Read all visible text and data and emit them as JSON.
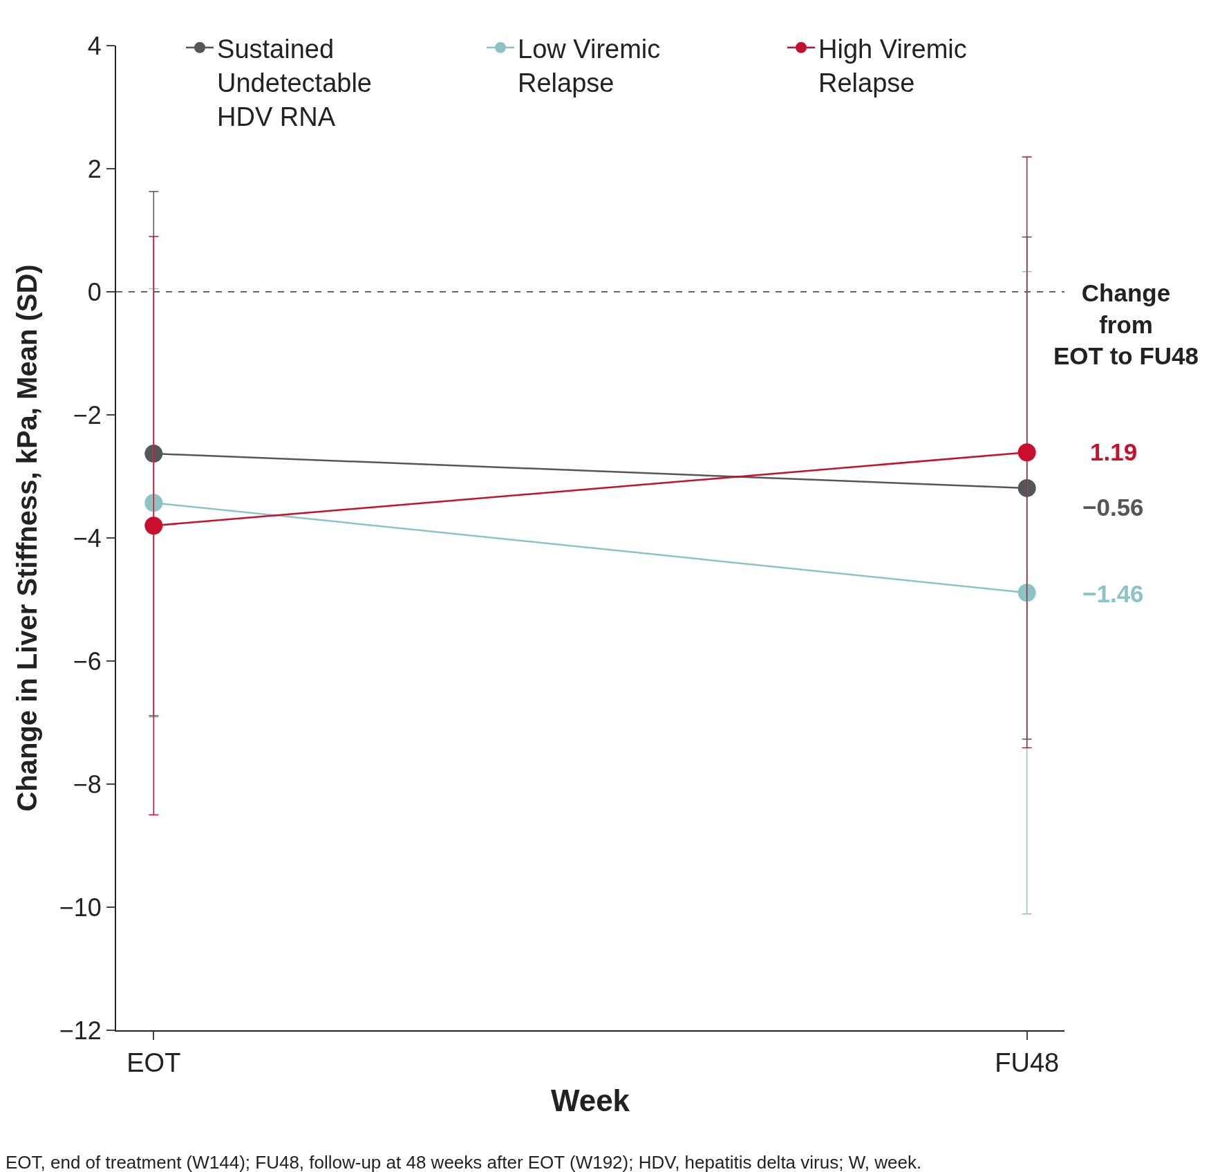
{
  "chart_data": {
    "type": "line",
    "xlabel": "Week",
    "ylabel": "Change in Liver Stiffness, kPa, Mean (SD)",
    "categories": [
      "EOT",
      "FU48"
    ],
    "series": [
      {
        "name": "Sustained\nUndetectable\nHDV RNA",
        "color": "#54565b",
        "values": [
          -2.63,
          -3.19
        ],
        "errors": [
          4.26,
          4.08
        ]
      },
      {
        "name": "Low Viremic\nRelapse",
        "color": "#8cc4c6",
        "values": [
          -3.43,
          -4.89
        ],
        "errors": [
          3.48,
          5.22
        ]
      },
      {
        "name": "High Viremic\nRelapse",
        "color": "#c8102e",
        "values": [
          -3.8,
          -2.61
        ],
        "errors": [
          4.7,
          4.8
        ]
      }
    ],
    "ylim": [
      -12,
      4
    ],
    "yticks": [
      {
        "value": -12,
        "label": "−12"
      },
      {
        "value": -10,
        "label": "−10"
      },
      {
        "value": -8,
        "label": "−8"
      },
      {
        "value": -6,
        "label": "−6"
      },
      {
        "value": -4,
        "label": "−4"
      },
      {
        "value": -2,
        "label": "−2"
      },
      0,
      2,
      4
    ],
    "ref_lines": [
      {
        "axis": "y",
        "value": 0,
        "color": "#333333",
        "line_style": "dashed"
      }
    ],
    "annotations": [
      "Change\nfrom\nEOT to FU48",
      "EOT, end of treatment (W144); FU48, follow-up at 48 weeks after EOT (W192); HDV, hepatitis delta virus; W, week.",
      {
        "text": "1.19",
        "x": "FU48",
        "y": -2.6
      },
      {
        "text": "−0.56",
        "x": "FU48",
        "y": -3.5
      },
      {
        "text": "−1.46",
        "x": "FU48",
        "y": -4.9
      }
    ],
    "marker": "circle",
    "line_style": "solid",
    "legend": "top",
    "grid": false
  }
}
